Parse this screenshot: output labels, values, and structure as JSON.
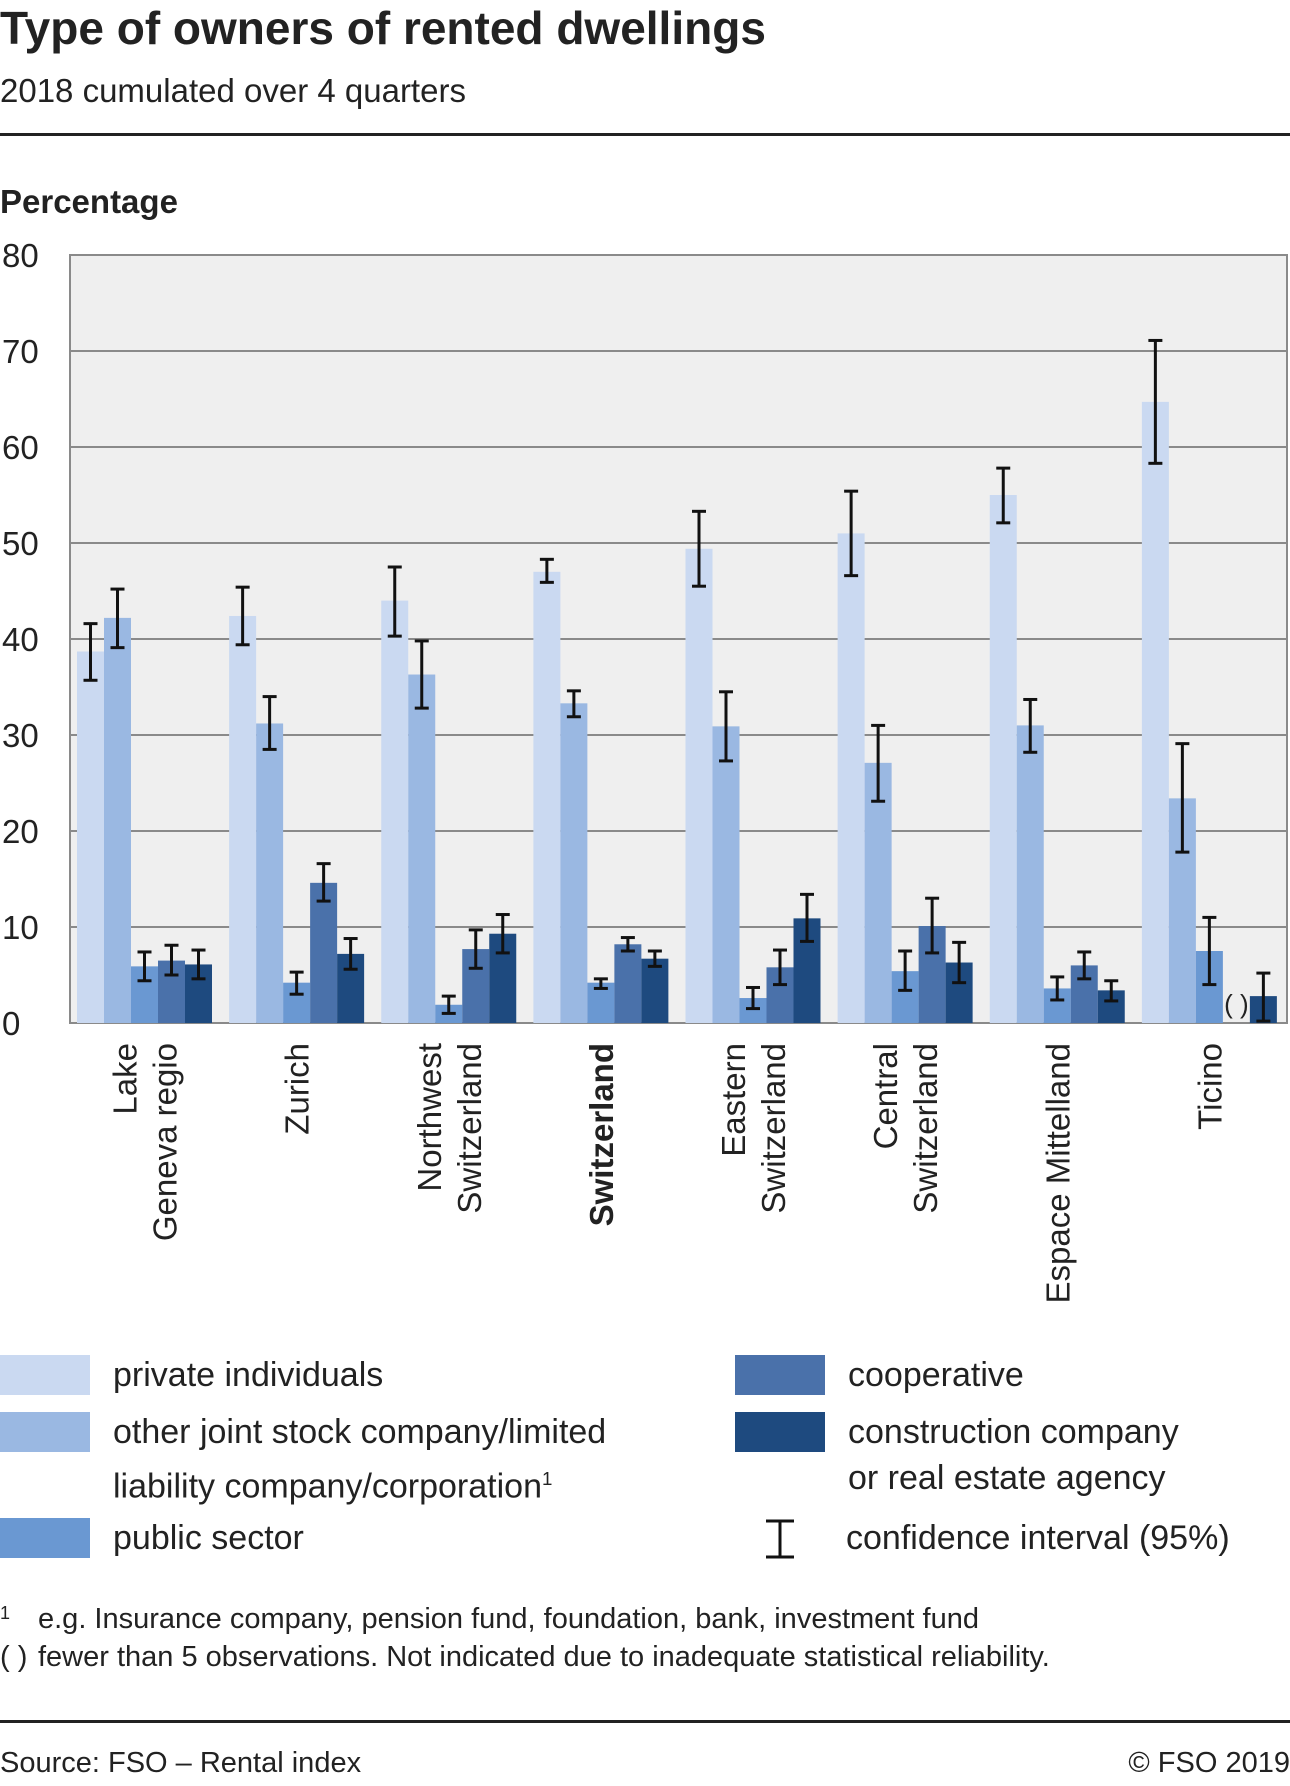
{
  "header": {
    "title": "Type of owners of rented dwellings",
    "subtitle": "2018 cumulated over 4 quarters"
  },
  "colors": {
    "private": "#cad9f1",
    "other_company": "#9ab8e2",
    "public": "#6a98d2",
    "cooperative": "#4a71aa",
    "construction": "#1e4a7f",
    "plot_background": "#efefef",
    "grid": "#8a8a8a",
    "error_bar": "#111111"
  },
  "chart_data": {
    "type": "bar",
    "title": "Type of owners of rented dwellings",
    "subtitle": "2018 cumulated over 4 quarters",
    "ylabel": "Percentage",
    "ylim": [
      0,
      80
    ],
    "yticks": [
      "0",
      "10",
      "20",
      "30",
      "40",
      "50",
      "60",
      "70",
      "80"
    ],
    "grid": true,
    "categories": [
      [
        "Lake",
        "Geneva regio"
      ],
      [
        "Zurich"
      ],
      [
        "Northwest",
        "Switzerland"
      ],
      [
        "Switzerland"
      ],
      [
        "Eastern",
        "Switzerland"
      ],
      [
        "Central",
        "Switzerland"
      ],
      [
        "Espace Mittelland"
      ],
      [
        "Ticino"
      ]
    ],
    "bold_category": "Switzerland",
    "series": [
      {
        "name": "private individuals",
        "values": [
          38.7,
          42.4,
          44.0,
          47.0,
          49.4,
          51.0,
          55.0,
          64.7
        ],
        "ci": [
          [
            35.7,
            41.6
          ],
          [
            39.4,
            45.4
          ],
          [
            40.3,
            47.5
          ],
          [
            45.9,
            48.3
          ],
          [
            45.5,
            53.3
          ],
          [
            46.6,
            55.4
          ],
          [
            52.1,
            57.8
          ],
          [
            58.3,
            71.1
          ]
        ]
      },
      {
        "name": "other joint stock company/limited liability company/corporation",
        "values": [
          42.2,
          31.2,
          36.3,
          33.3,
          30.9,
          27.1,
          31.0,
          23.4
        ],
        "ci": [
          [
            39.1,
            45.2
          ],
          [
            28.5,
            34.0
          ],
          [
            32.8,
            39.8
          ],
          [
            31.9,
            34.6
          ],
          [
            27.3,
            34.5
          ],
          [
            23.1,
            31.0
          ],
          [
            28.2,
            33.7
          ],
          [
            17.8,
            29.1
          ]
        ]
      },
      {
        "name": "public sector",
        "values": [
          5.9,
          4.2,
          1.9,
          4.2,
          2.6,
          5.4,
          3.6,
          7.5
        ],
        "ci": [
          [
            4.4,
            7.4
          ],
          [
            3.0,
            5.3
          ],
          [
            1.0,
            2.8
          ],
          [
            3.6,
            4.6
          ],
          [
            1.5,
            3.7
          ],
          [
            3.4,
            7.5
          ],
          [
            2.4,
            4.8
          ],
          [
            4.0,
            11.0
          ]
        ]
      },
      {
        "name": "cooperative",
        "values": [
          6.5,
          14.6,
          7.7,
          8.2,
          5.8,
          10.1,
          6.0,
          0
        ],
        "ci": [
          [
            5.0,
            8.1
          ],
          [
            12.7,
            16.6
          ],
          [
            5.7,
            9.7
          ],
          [
            7.5,
            8.9
          ],
          [
            4.0,
            7.6
          ],
          [
            7.3,
            13.0
          ],
          [
            4.6,
            7.4
          ],
          null
        ],
        "not_indicated": [
          7
        ]
      },
      {
        "name": "construction company or real estate agency",
        "values": [
          6.1,
          7.2,
          9.3,
          6.7,
          10.9,
          6.3,
          3.4,
          2.8
        ],
        "ci": [
          [
            4.6,
            7.6
          ],
          [
            5.6,
            8.8
          ],
          [
            7.3,
            11.3
          ],
          [
            5.9,
            7.5
          ],
          [
            8.5,
            13.4
          ],
          [
            4.2,
            8.4
          ],
          [
            2.3,
            4.4
          ],
          [
            0.2,
            5.2
          ]
        ]
      }
    ],
    "not_indicated_marker": "( )",
    "legend_position": "bottom"
  },
  "legend": {
    "private": "private individuals",
    "other_company_line1": "other joint stock company/limited",
    "other_company_line2": "liability company/corporation",
    "other_company_sup": "1",
    "public": "public sector",
    "cooperative": "cooperative",
    "construction_line1": "construction company",
    "construction_line2": "or real estate agency",
    "ci": "confidence interval (95%)"
  },
  "notes": {
    "note1_mark": "1",
    "note1_text": "e.g. Insurance company, pension fund, foundation, bank, investment fund",
    "note2_mark": "( )",
    "note2_text": "fewer than 5 observations. Not indicated due to inadequate statistical reliability."
  },
  "footer": {
    "source": "Source: FSO – Rental index",
    "copyright": "© FSO 2019"
  }
}
